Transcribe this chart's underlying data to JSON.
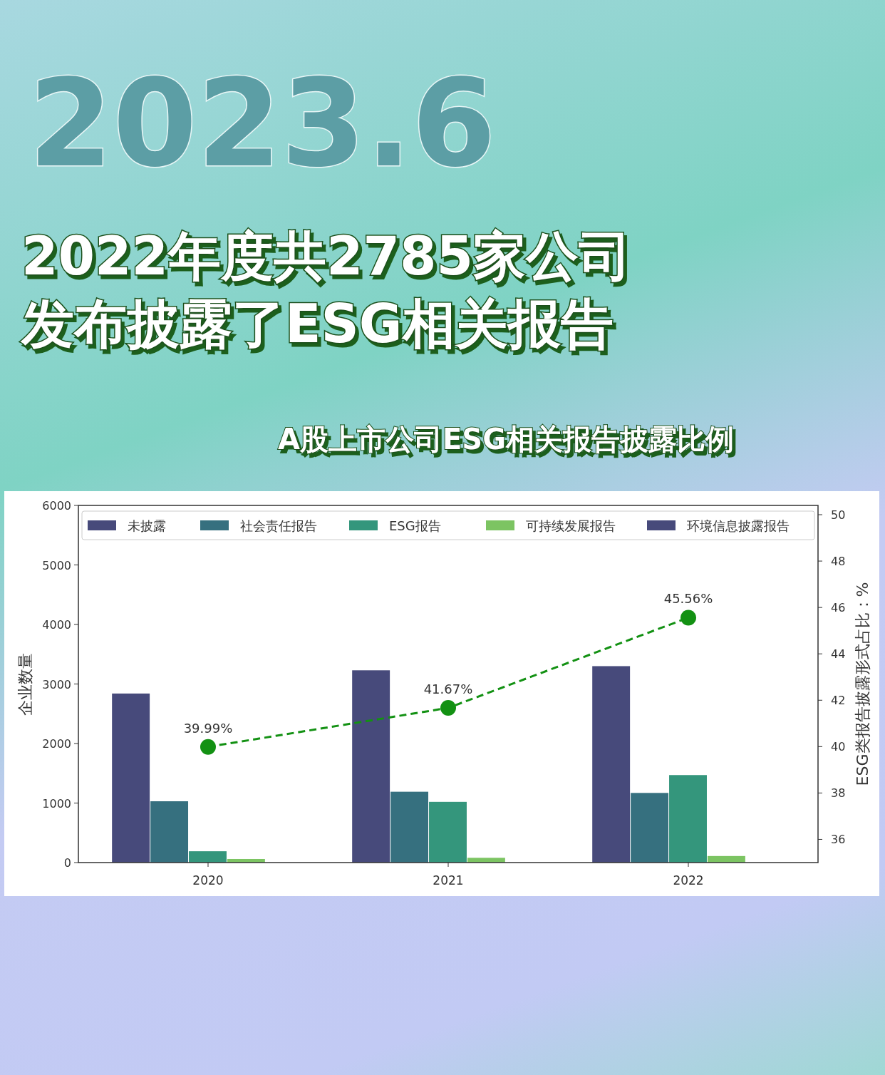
{
  "chart_data": {
    "type": "bar",
    "title": [
      "2022年度共2785家公司",
      "发布披露了ESG相关报告"
    ],
    "subtitle": "A股上市公司ESG相关报告披露比例",
    "annotations": [
      "2023.6"
    ],
    "categories": [
      "2020",
      "2021",
      "2022"
    ],
    "series": [
      {
        "name": "未披露",
        "color": "#474a7b",
        "values": [
          2840,
          3230,
          3300
        ]
      },
      {
        "name": "社会责任报告",
        "color": "#36707f",
        "values": [
          1030,
          1190,
          1170
        ]
      },
      {
        "name": "ESG报告",
        "color": "#34967c",
        "values": [
          190,
          1020,
          1470
        ]
      },
      {
        "name": "可持续发展报告",
        "color": "#7cc462",
        "values": [
          60,
          80,
          110
        ]
      },
      {
        "name": "环境信息披露报告",
        "color": "#474a7b",
        "values": [
          null,
          null,
          null
        ]
      },
      {
        "type": "line",
        "axis": "y2",
        "color": "#139113",
        "values": [
          39.99,
          41.67,
          45.56
        ],
        "value_labels": [
          "39.99%",
          "41.67%",
          "45.56%"
        ]
      }
    ],
    "ylabel": "企业数量",
    "y2label": "ESG类报告披露形式占比：%",
    "ylim": [
      0,
      6000
    ],
    "yticks": [
      0,
      1000,
      2000,
      3000,
      4000,
      5000,
      6000
    ],
    "y2lim": [
      35,
      50.4
    ],
    "y2ticks": [
      36,
      38,
      40,
      42,
      44,
      46,
      48,
      50
    ],
    "legend": "top",
    "marker": "circle",
    "line_style": "dashed",
    "grid": false
  }
}
